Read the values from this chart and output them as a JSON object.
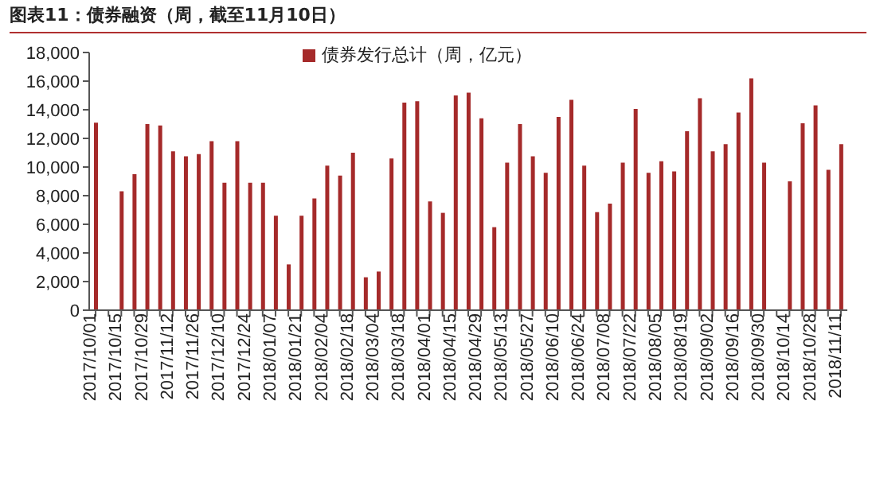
{
  "chart_data": {
    "type": "bar",
    "title": "图表11：债券融资（周，截至11月10日）",
    "categories": [
      "2017/10/01",
      null,
      "2017/10/15",
      null,
      "2017/10/29",
      null,
      "2017/11/12",
      null,
      "2017/11/26",
      null,
      "2017/12/10",
      null,
      "2017/12/24",
      null,
      "2018/01/07",
      null,
      "2018/01/21",
      null,
      "2018/02/04",
      null,
      "2018/02/18",
      null,
      "2018/03/04",
      null,
      "2018/03/18",
      null,
      "2018/04/01",
      null,
      "2018/04/15",
      null,
      "2018/04/29",
      null,
      "2018/05/13",
      null,
      "2018/05/27",
      null,
      "2018/06/10",
      null,
      "2018/06/24",
      null,
      "2018/07/08",
      null,
      "2018/07/22",
      null,
      "2018/08/05",
      null,
      "2018/08/19",
      null,
      "2018/09/02",
      null,
      "2018/09/16",
      null,
      "2018/09/30",
      null,
      "2018/10/14",
      null,
      "2018/10/28",
      null,
      "2018/11/11"
    ],
    "series": [
      {
        "name": "债券发行总计（周，亿元）",
        "color": "#a52a2a",
        "values": [
          13100,
          null,
          8300,
          9500,
          13000,
          12900,
          11100,
          10750,
          10900,
          11800,
          8900,
          11800,
          8900,
          8900,
          6600,
          3200,
          6600,
          7800,
          10100,
          9400,
          11000,
          2300,
          2700,
          10600,
          14500,
          14600,
          7600,
          6800,
          15000,
          15200,
          13400,
          5800,
          10300,
          13000,
          10750,
          9600,
          13500,
          14700,
          10100,
          6850,
          7450,
          10300,
          14050,
          9600,
          10400,
          9700,
          12500,
          14800,
          11100,
          11600,
          13800,
          16200,
          10300,
          null,
          9000,
          13050,
          14300,
          9800,
          11600
        ]
      }
    ],
    "ylim": [
      0,
      18000
    ],
    "yticks": [
      0,
      {
        "value": 2000,
        "label": "2,000"
      },
      {
        "value": 4000,
        "label": "4,000"
      },
      {
        "value": 6000,
        "label": "6,000"
      },
      {
        "value": 8000,
        "label": "8,000"
      },
      {
        "value": 10000,
        "label": "10,000"
      },
      {
        "value": 12000,
        "label": "12,000"
      },
      {
        "value": 14000,
        "label": "14,000"
      },
      {
        "value": 16000,
        "label": "16,000"
      },
      {
        "value": 18000,
        "label": "18,000"
      }
    ],
    "grid": false,
    "legend": "top"
  }
}
